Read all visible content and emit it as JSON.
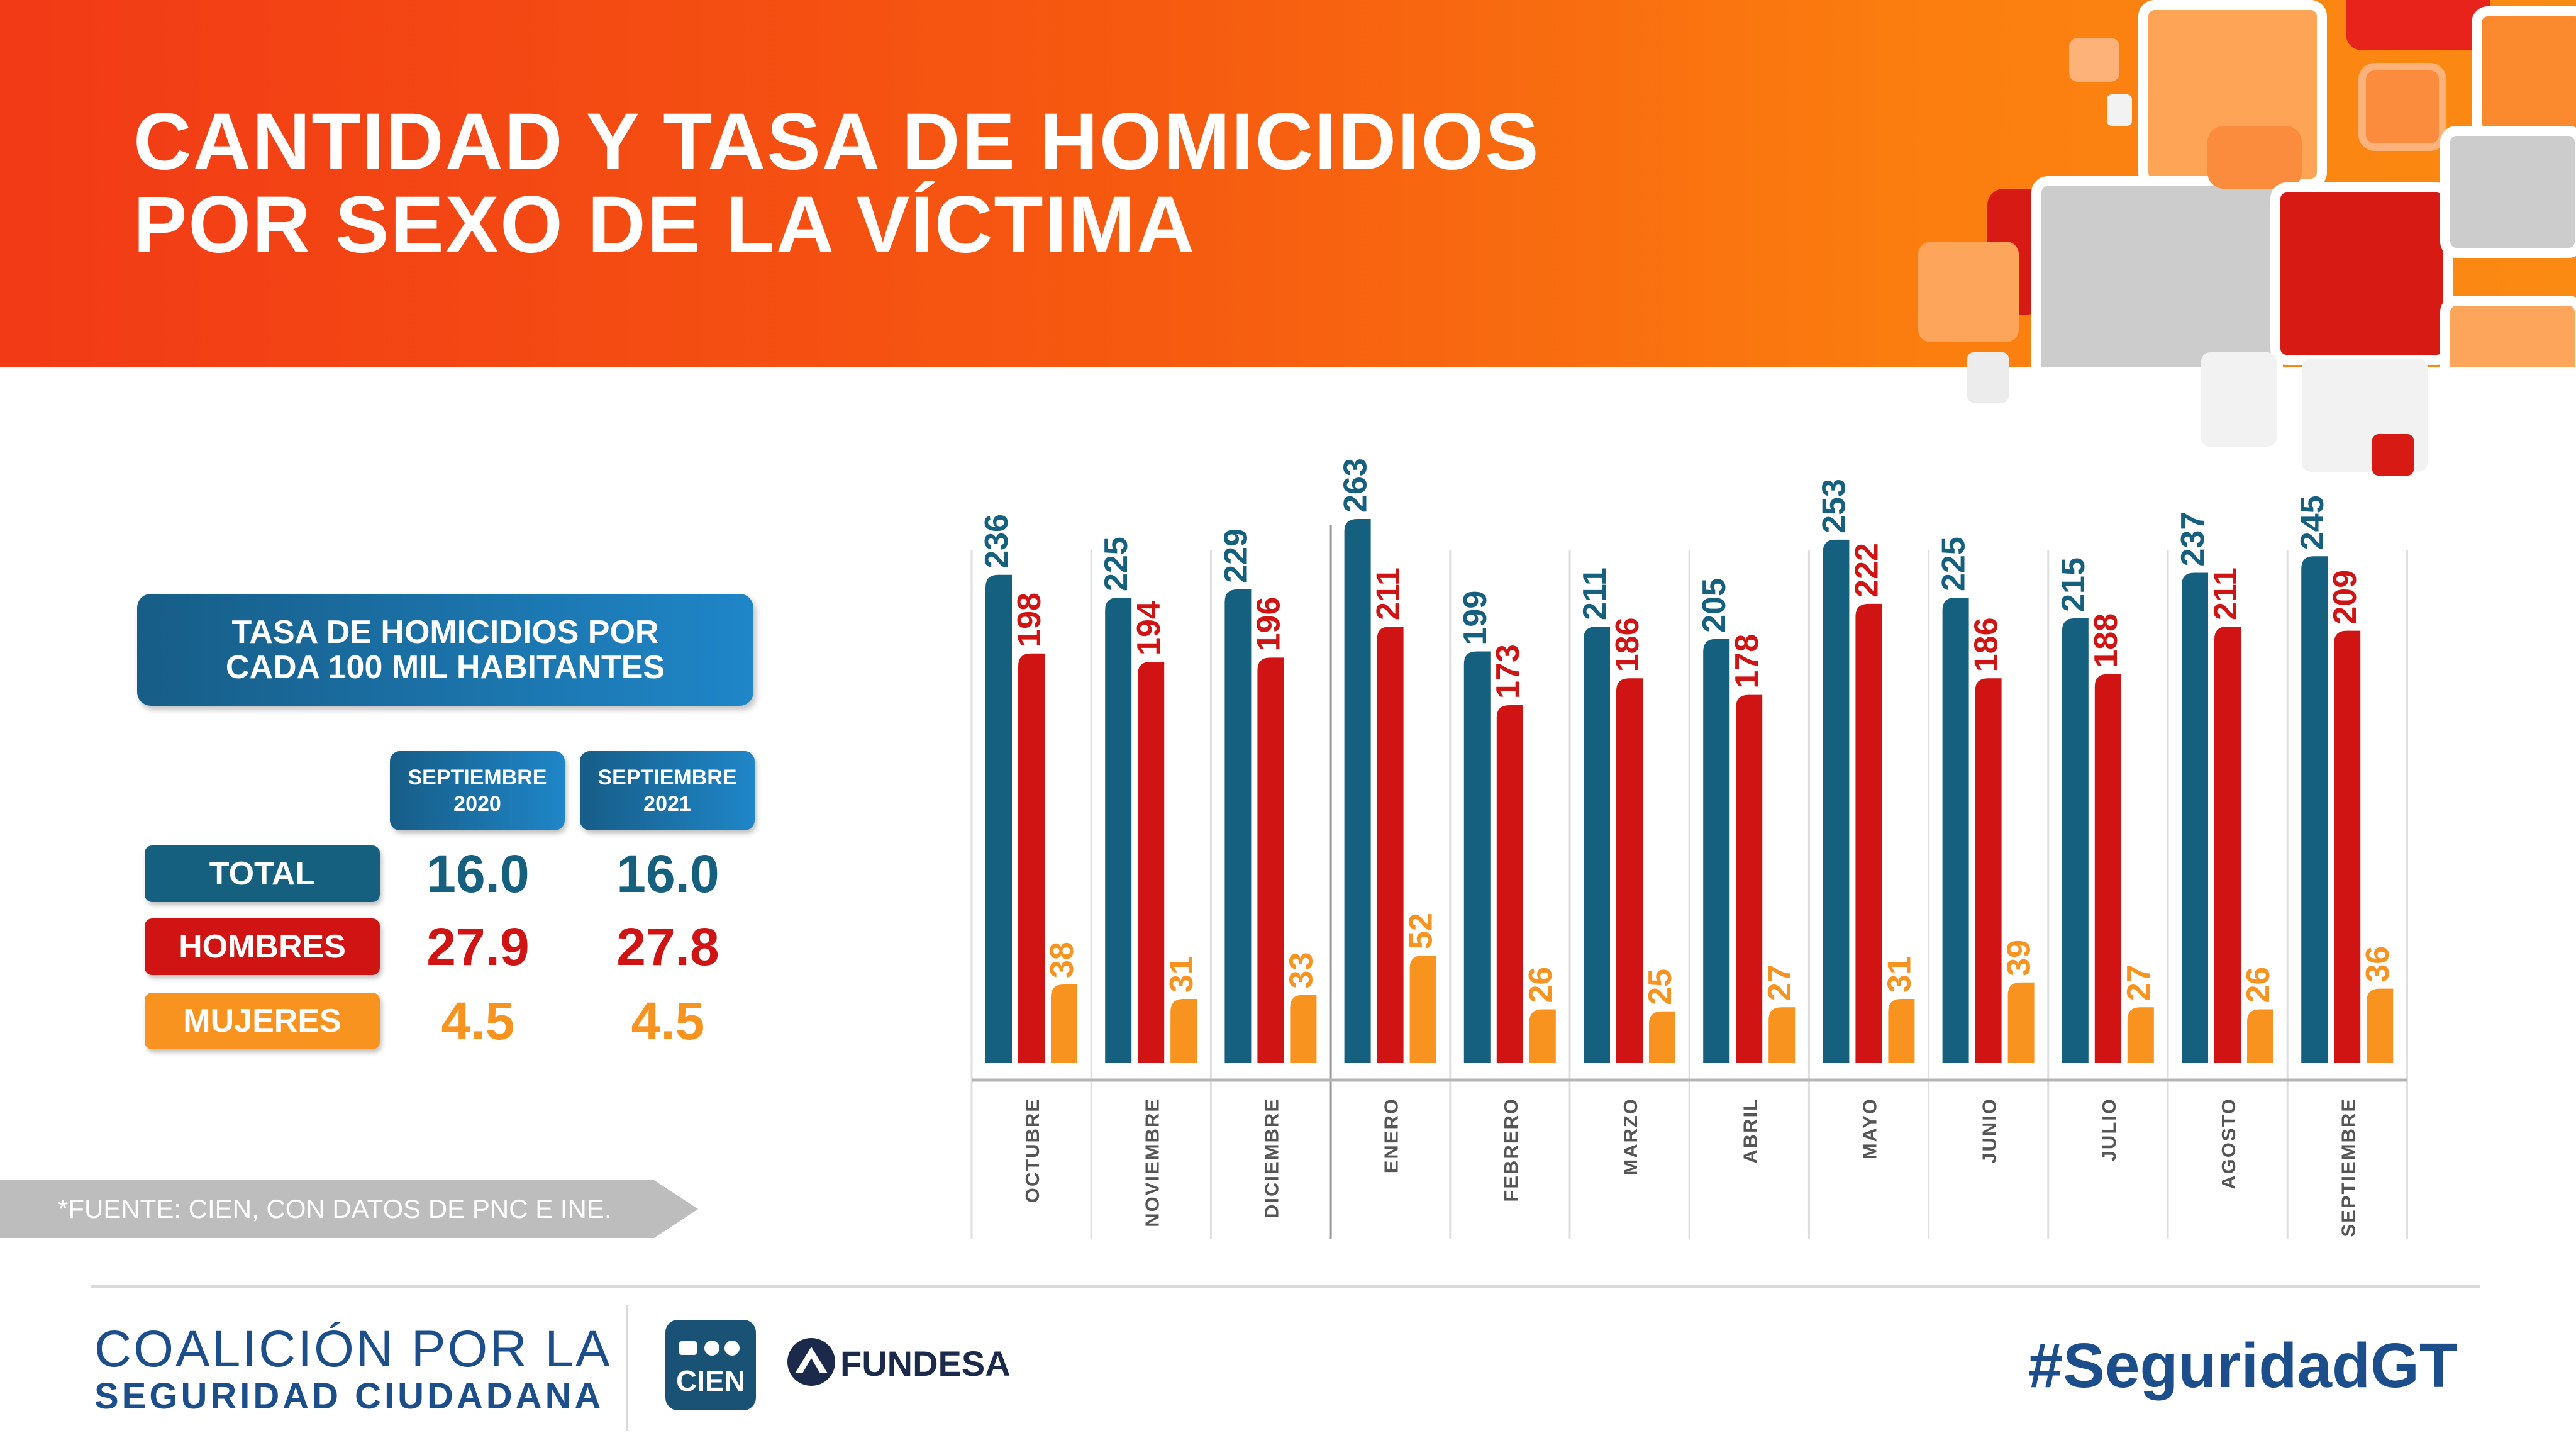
{
  "title": {
    "line1": "CANTIDAD Y TASA DE HOMICIDIOS",
    "line2": "POR SEXO DE LA VÍCTIMA"
  },
  "rate_table": {
    "header_line1": "TASA DE HOMICIDIOS POR",
    "header_line2": "CADA 100 MIL HABITANTES",
    "columns": [
      {
        "line1": "SEPTIEMBRE",
        "line2": "2020"
      },
      {
        "line1": "SEPTIEMBRE",
        "line2": "2021"
      }
    ],
    "rows": [
      {
        "label": "TOTAL",
        "values": [
          "16.0",
          "16.0"
        ],
        "color": "#16607f"
      },
      {
        "label": "HOMBRES",
        "values": [
          "27.9",
          "27.8"
        ],
        "color": "#d01414"
      },
      {
        "label": "MUJERES",
        "values": [
          "4.5",
          "4.5"
        ],
        "color": "#f7931e"
      }
    ]
  },
  "source": "*FUENTE: CIEN, CON DATOS DE PNC E INE.",
  "footer": {
    "coalicion_line1": "COALICIÓN POR LA",
    "coalicion_line2": "SEGURIDAD CIUDADANA",
    "cien": "CIEN",
    "fundesa": "FUNDESA",
    "hashtag": "#SeguridadGT"
  },
  "chart_data": {
    "type": "bar",
    "categories": [
      "OCTUBRE",
      "NOVIEMBRE",
      "DICIEMBRE",
      "ENERO",
      "FEBRERO",
      "MARZO",
      "ABRIL",
      "MAYO",
      "JUNIO",
      "JULIO",
      "AGOSTO",
      "SEPTIEMBRE"
    ],
    "series": [
      {
        "values": [
          236,
          225,
          229,
          263,
          199,
          211,
          205,
          253,
          225,
          215,
          237,
          245
        ],
        "color": "#16607f"
      },
      {
        "values": [
          198,
          194,
          196,
          211,
          173,
          186,
          178,
          222,
          186,
          188,
          211,
          209
        ],
        "color": "#d01414"
      },
      {
        "values": [
          38,
          31,
          33,
          52,
          26,
          25,
          27,
          31,
          39,
          27,
          26,
          36
        ],
        "color": "#f7931e"
      }
    ],
    "ylim": [
      0,
      263
    ],
    "grid": false,
    "legend": "none"
  },
  "colors": {
    "total": "#16607f",
    "hombres": "#d01414",
    "mujeres": "#f7931e",
    "accent_blue": "#1f86c8"
  }
}
